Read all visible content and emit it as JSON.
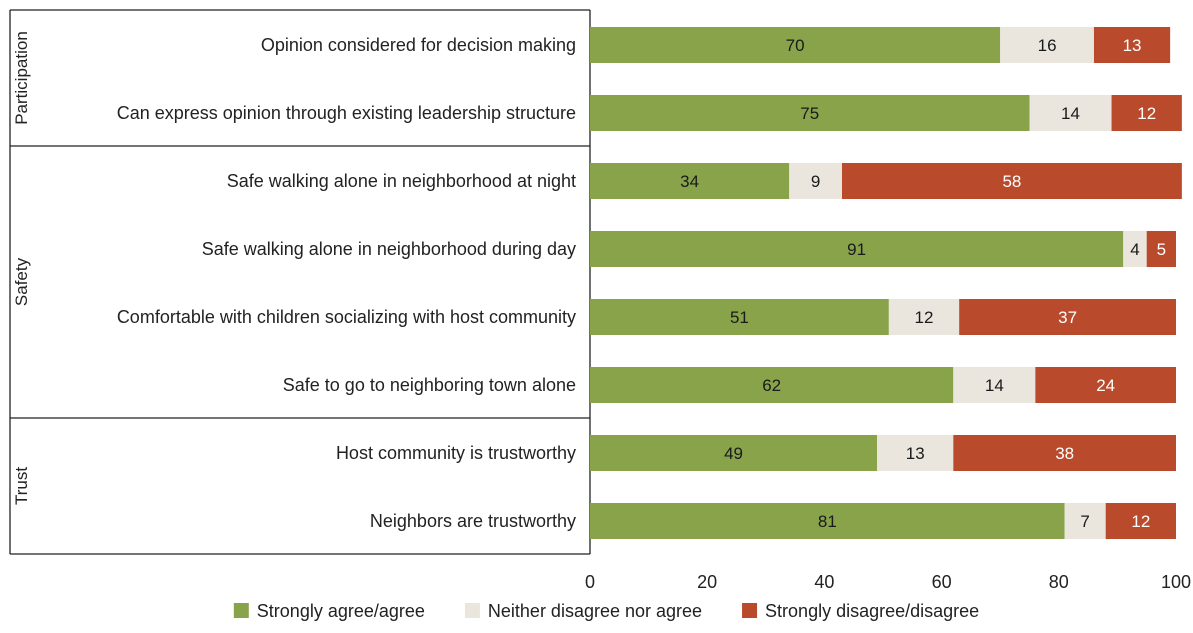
{
  "chart_data": {
    "type": "bar",
    "orientation": "horizontal",
    "stacked": true,
    "groups": [
      {
        "name": "Participation",
        "rows": [
          0,
          1
        ]
      },
      {
        "name": "Safety",
        "rows": [
          2,
          3,
          4,
          5
        ]
      },
      {
        "name": "Trust",
        "rows": [
          6,
          7
        ]
      }
    ],
    "categories": [
      "Opinion considered for decision making",
      "Can express opinion through existing leadership structure",
      "Safe walking alone in neighborhood at night",
      "Safe walking alone in neighborhood during day",
      "Comfortable with children socializing with host community",
      "Safe to go to neighboring town alone",
      "Host community is trustworthy",
      "Neighbors are trustworthy"
    ],
    "series": [
      {
        "name": "Strongly agree/agree",
        "color": "#88a34a",
        "label_color": "#1a1a1a",
        "values": [
          70,
          75,
          34,
          91,
          51,
          62,
          49,
          81
        ]
      },
      {
        "name": "Neither disagree nor agree",
        "color": "#ebe6dd",
        "label_color": "#1a1a1a",
        "values": [
          16,
          14,
          9,
          4,
          12,
          14,
          13,
          7
        ]
      },
      {
        "name": "Strongly disagree/disagree",
        "color": "#b94a2b",
        "label_color": "#ffffff",
        "values": [
          13,
          12,
          58,
          5,
          37,
          24,
          38,
          12
        ]
      }
    ],
    "xlim": [
      0,
      100
    ],
    "xticks": [
      0,
      20,
      40,
      60,
      80,
      100
    ],
    "legend_position": "bottom",
    "grid": false
  }
}
